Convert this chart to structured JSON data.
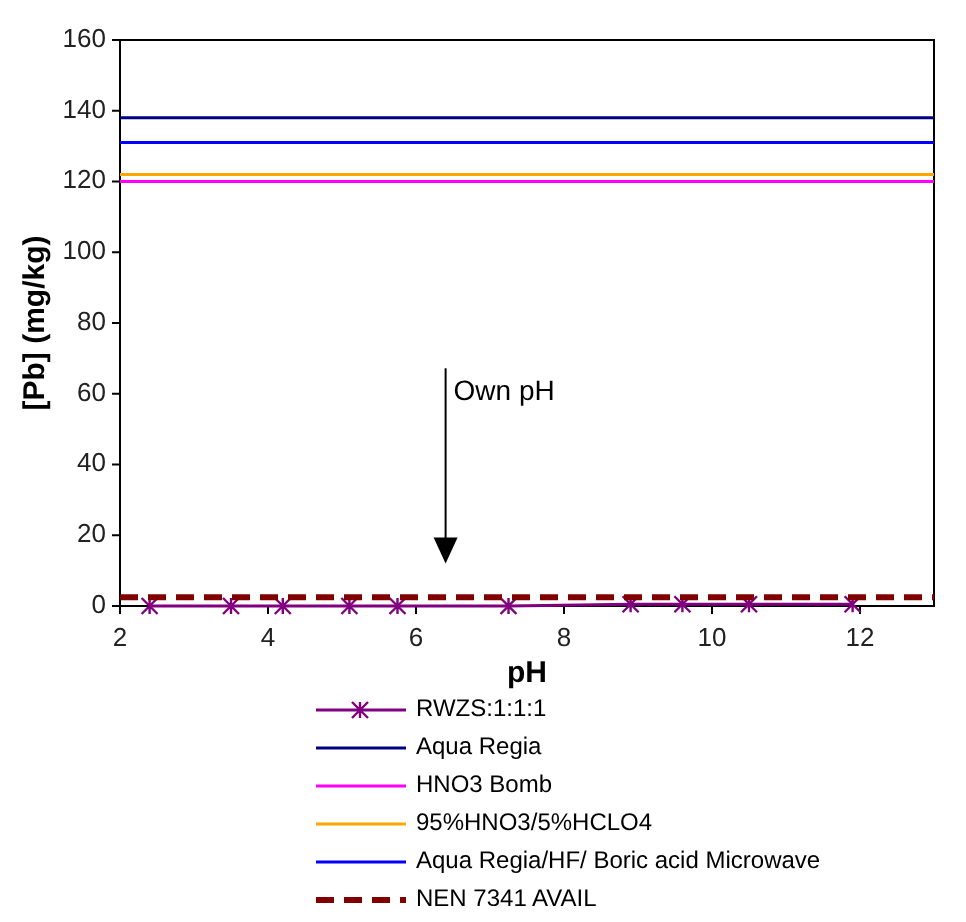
{
  "chart_data": {
    "type": "line",
    "xlabel": "pH",
    "ylabel": "[Pb] (mg/kg)",
    "xlim": [
      2,
      13
    ],
    "xticks": [
      2,
      4,
      6,
      8,
      10,
      12
    ],
    "ylim": [
      0,
      160
    ],
    "yticks": [
      0,
      20,
      40,
      60,
      80,
      100,
      120,
      140,
      160
    ],
    "grid": false,
    "legend": "bottom",
    "series": [
      {
        "name": "RWZS:1:1:1",
        "color": "#800080",
        "marker": "cross",
        "x": [
          2.4,
          3.5,
          4.2,
          5.1,
          5.75,
          7.25,
          8.9,
          9.6,
          10.5,
          11.9
        ],
        "values": [
          0,
          0,
          0,
          0,
          0,
          0,
          0.5,
          0.5,
          0.5,
          0.5
        ]
      },
      {
        "name": "Aqua Regia",
        "color": "#000080",
        "marker": "none",
        "x": [
          2,
          13
        ],
        "values": [
          138,
          138
        ]
      },
      {
        "name": "HNO3 Bomb",
        "color": "#ff00ff",
        "marker": "none",
        "x": [
          2,
          13
        ],
        "values": [
          120,
          120
        ]
      },
      {
        "name": "95%HNO3/5%HCLO4",
        "color": "#ffa500",
        "marker": "none",
        "x": [
          2,
          13
        ],
        "values": [
          122,
          122
        ]
      },
      {
        "name": "Aqua Regia/HF/ Boric acid Microwave",
        "color": "#0000ff",
        "marker": "none",
        "x": [
          2,
          13
        ],
        "values": [
          131,
          131
        ]
      },
      {
        "name": "NEN 7341 AVAIL",
        "color": "#800000",
        "marker": "none",
        "line_style": "dashed",
        "x": [
          2,
          13
        ],
        "values": [
          2.5,
          2.5
        ]
      }
    ],
    "annotations": [
      "Own pH"
    ]
  }
}
